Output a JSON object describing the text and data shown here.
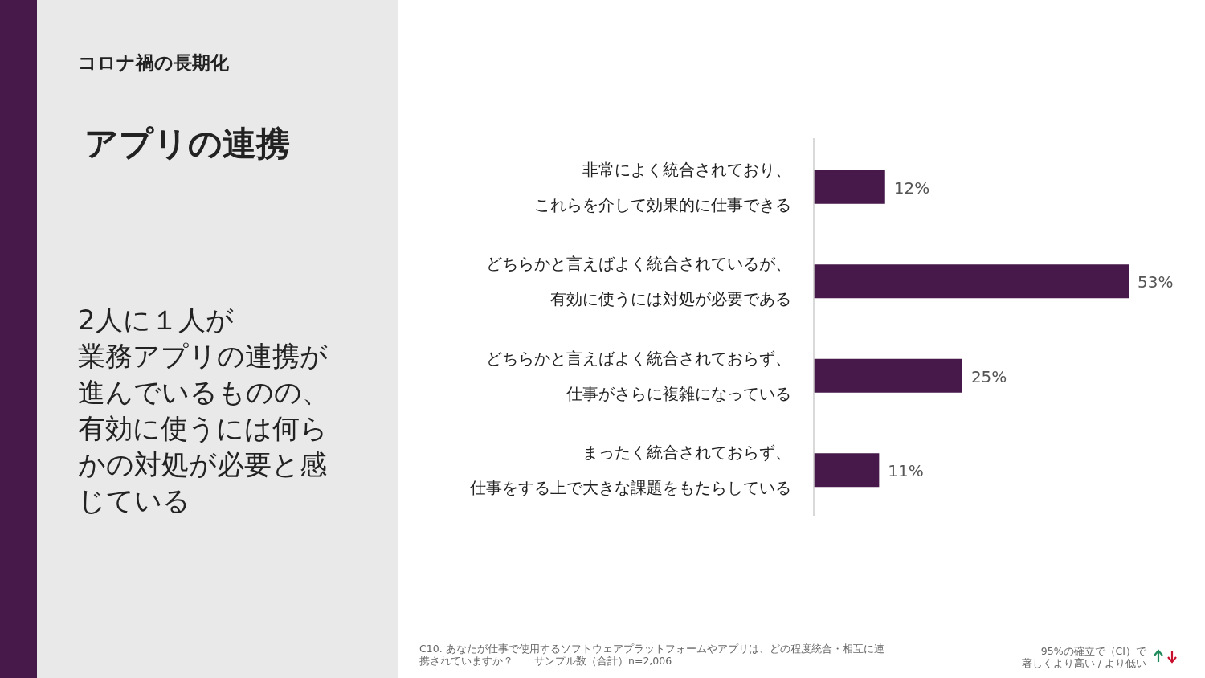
{
  "chart_data": {
    "type": "bar",
    "orientation": "horizontal",
    "subtitle": "コロナ禍の長期化",
    "title": "アプリの連携",
    "categories": [
      "非常によく統合されており、これらを介して効果的に仕事できる",
      "どちらかと言えばよく統合されているが、有効に使うには対処が必要である",
      "どちらかと言えばよく統合されておらず、仕事がさらに複雑になっている",
      "まったく統合されておらず、仕事をする上で大きな課題をもたらしている"
    ],
    "values": [
      12,
      53,
      25,
      11
    ],
    "value_labels": [
      "12%",
      "53%",
      "25%",
      "11%"
    ],
    "color": "#46194a",
    "annotations": [
      "2人に１人が",
      "業務アプリの連携が進んでいるものの、有効に使うには何らかの対処が必要と感じている",
      "C10. あなたが仕事で使用するソフトウェアプラットフォームやアプリは、どの程度統合・相互に連携されていますか？　　サンプル数（合計）n=2,006",
      "95%の確立で（CI）で",
      "著しくより高い / より低い"
    ]
  }
}
